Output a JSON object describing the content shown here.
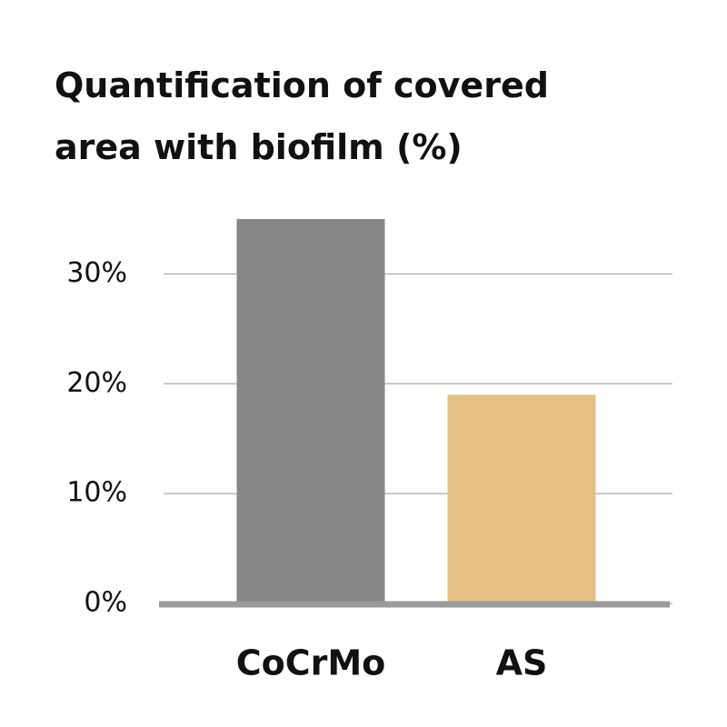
{
  "chart_data": {
    "type": "bar",
    "title": "Quantification of covered area with biofilm (%)",
    "categories": [
      "CoCrMo",
      "AS"
    ],
    "values": [
      35,
      19
    ],
    "colors": [
      "#878787",
      "#e5c187"
    ],
    "ylim": [
      0,
      35
    ],
    "yticks": [
      {
        "value": 0,
        "label": "0%"
      },
      {
        "value": 10,
        "label": "10%"
      },
      {
        "value": 20,
        "label": "20%"
      },
      {
        "value": 30,
        "label": "30%"
      }
    ],
    "grid": true
  }
}
